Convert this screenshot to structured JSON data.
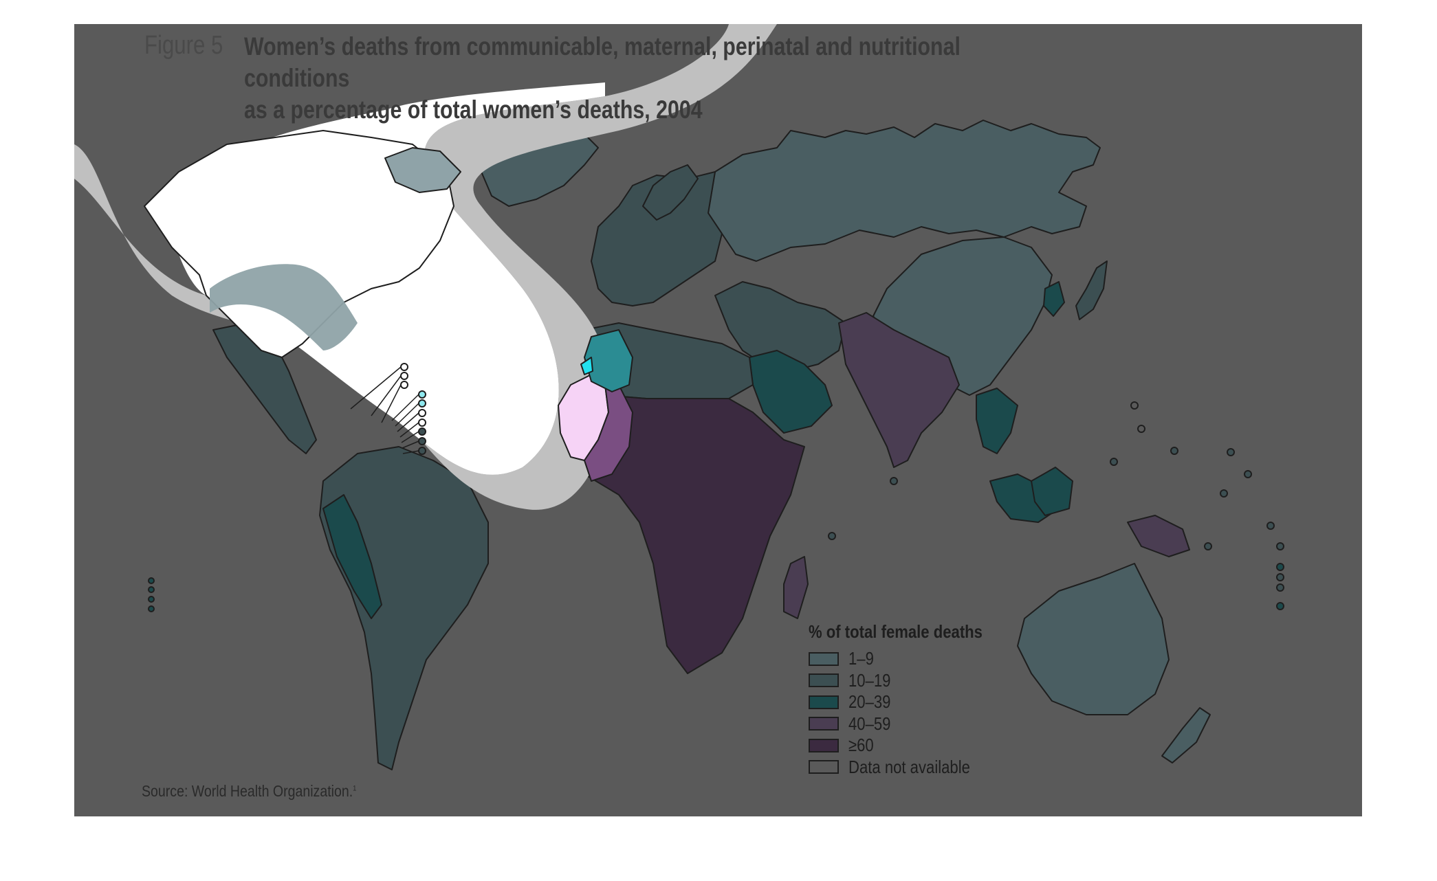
{
  "figure": {
    "label": "Figure 5",
    "title_line1": "Women’s deaths from communicable, maternal, perinatal and nutritional conditions",
    "title_line2": "as a percentage of total women’s deaths, 2004",
    "source": "Source: World Health Organization.",
    "source_note": "1"
  },
  "legend": {
    "title": "% of total female deaths",
    "items": [
      {
        "label": "1–9",
        "color": "#4a5e62"
      },
      {
        "label": "10–19",
        "color": "#3c4f52"
      },
      {
        "label": "20–39",
        "color": "#1b4a4c"
      },
      {
        "label": "40–59",
        "color": "#4a3d52"
      },
      {
        "label": "≥60",
        "color": "#3b2a40"
      },
      {
        "label": "Data not available",
        "color": "#5a5a5a"
      }
    ]
  },
  "colors": {
    "panel": "#5a5a5a",
    "highlight_band": "#c0c0c0",
    "highlight_fill": "#ffffff",
    "outline": "#1e1e1e"
  }
}
